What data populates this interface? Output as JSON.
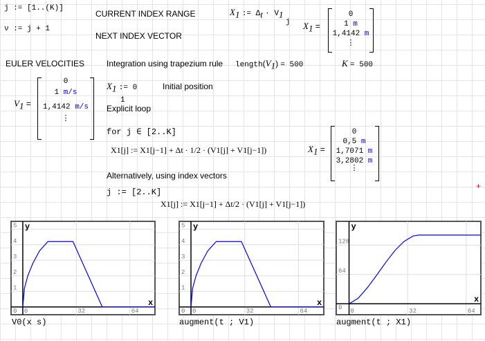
{
  "definitions": {
    "j_range": "j := [1..(K)]",
    "next_index": "ν := j + 1",
    "current_label": "CURRENT INDEX RANGE",
    "next_label": "NEXT INDEX VECTOR",
    "x1_def_lhs": "X",
    "x1_def_rhs": ":= Δ",
    "x1_def_tail": "· V",
    "x1_def_index": "j"
  },
  "x1_first": {
    "label": "X",
    "rows": [
      "0",
      "1",
      "1,4142"
    ],
    "units": [
      "",
      "m",
      "m"
    ]
  },
  "euler_label": "EULER VELOCITIES",
  "trap_label": "Integration using trapezium rule",
  "length_expr": {
    "fn": "length",
    "arg": "V",
    "result": "= 500"
  },
  "k_expr": {
    "name": "K",
    "result": "= 500"
  },
  "v1": {
    "label": "V",
    "rows": [
      "0",
      "1",
      "1,4142"
    ],
    "units": [
      "",
      "m/s",
      "m/s"
    ]
  },
  "initial": {
    "expr": ":= 0",
    "index": "1",
    "label": "Initial position"
  },
  "explicit_label": "Explicit loop",
  "for_line": "for  j ∈ [2..K]",
  "loop_eq": "X1[j] := X1[j−1] + Δt · 1/2 · (V1[j] + V1[j−1])",
  "x1_second": {
    "label": "X",
    "rows": [
      "0",
      "0,5",
      "1,7071",
      "3,2802"
    ],
    "units": [
      "",
      "m",
      "m",
      "m"
    ]
  },
  "alt_label": "Alternatively, using index vectors",
  "alt_range": "j := [2..K]",
  "alt_eq": "X1[j] := X1[j−1] + Δt/2 · (V1[j] + V1[j−1])",
  "colors": {
    "curve": "#0000ff",
    "unit": "#0000ff",
    "marker": "#ff0000"
  },
  "chart_data": [
    {
      "type": "line",
      "caption": "V0(x s)",
      "xlabel": "x",
      "ylabel": "y",
      "xticks": [
        "0",
        "32",
        "64"
      ],
      "yticks": [
        "0",
        "1",
        "2",
        "3",
        "4",
        "5"
      ],
      "xlim": [
        -7,
        79
      ],
      "ylim": [
        -0.5,
        5.5
      ],
      "x": [
        0,
        1,
        3,
        6,
        10,
        15,
        30,
        47.5,
        79
      ],
      "y": [
        0,
        1.2,
        2.0,
        2.8,
        3.6,
        4.2,
        4.2,
        0,
        0
      ]
    },
    {
      "type": "line",
      "caption": "augment(t ; V1)",
      "xlabel": "x",
      "ylabel": "y",
      "xticks": [
        "0",
        "32",
        "64"
      ],
      "yticks": [
        "0",
        "1",
        "2",
        "3",
        "4",
        "5"
      ],
      "xlim": [
        -7,
        79
      ],
      "ylim": [
        -0.5,
        5.5
      ],
      "x": [
        0,
        1,
        3,
        6,
        10,
        15,
        30,
        47.5,
        79
      ],
      "y": [
        0,
        1.2,
        2.0,
        2.8,
        3.6,
        4.2,
        4.2,
        0,
        0
      ]
    },
    {
      "type": "line",
      "caption": "augment(t ; X1)",
      "xlabel": "x",
      "ylabel": "y",
      "xticks": [
        "0",
        "32",
        "64"
      ],
      "yticks": [
        "0",
        "64",
        "128"
      ],
      "xlim": [
        -7,
        72
      ],
      "ylim": [
        -24,
        180
      ],
      "x": [
        0,
        5,
        10,
        15,
        20,
        25,
        30,
        35,
        38,
        72
      ],
      "y": [
        0,
        12,
        35,
        62,
        90,
        116,
        136,
        148,
        150,
        150
      ]
    }
  ]
}
